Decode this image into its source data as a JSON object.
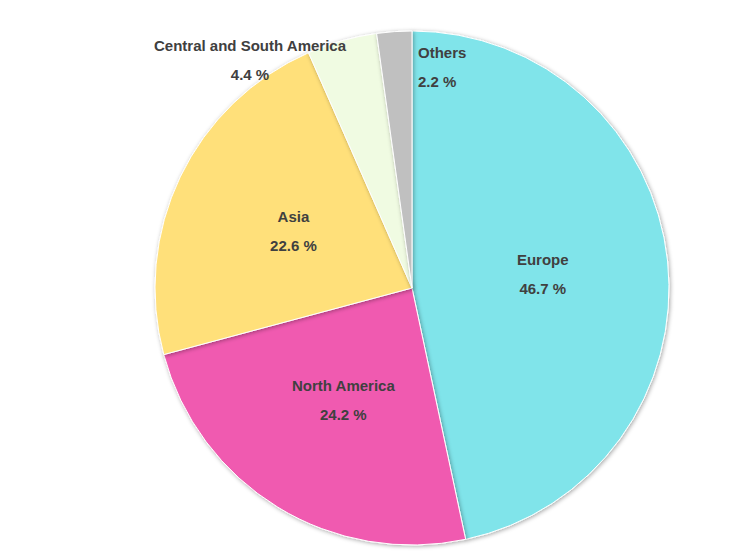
{
  "chart_data": {
    "type": "pie",
    "categories": [
      "Europe",
      "North America",
      "Asia",
      "Central and South America",
      "Others"
    ],
    "values": [
      46.7,
      24.2,
      22.6,
      4.4,
      2.2
    ],
    "value_labels": [
      "46.7 %",
      "24.2 %",
      "22.6 %",
      "4.4 %",
      "2.2 %"
    ],
    "colors": [
      "#80e4ea",
      "#f05ab0",
      "#ffe07a",
      "#f0fbe2",
      "#c0c0c0"
    ],
    "data_labels": true
  }
}
